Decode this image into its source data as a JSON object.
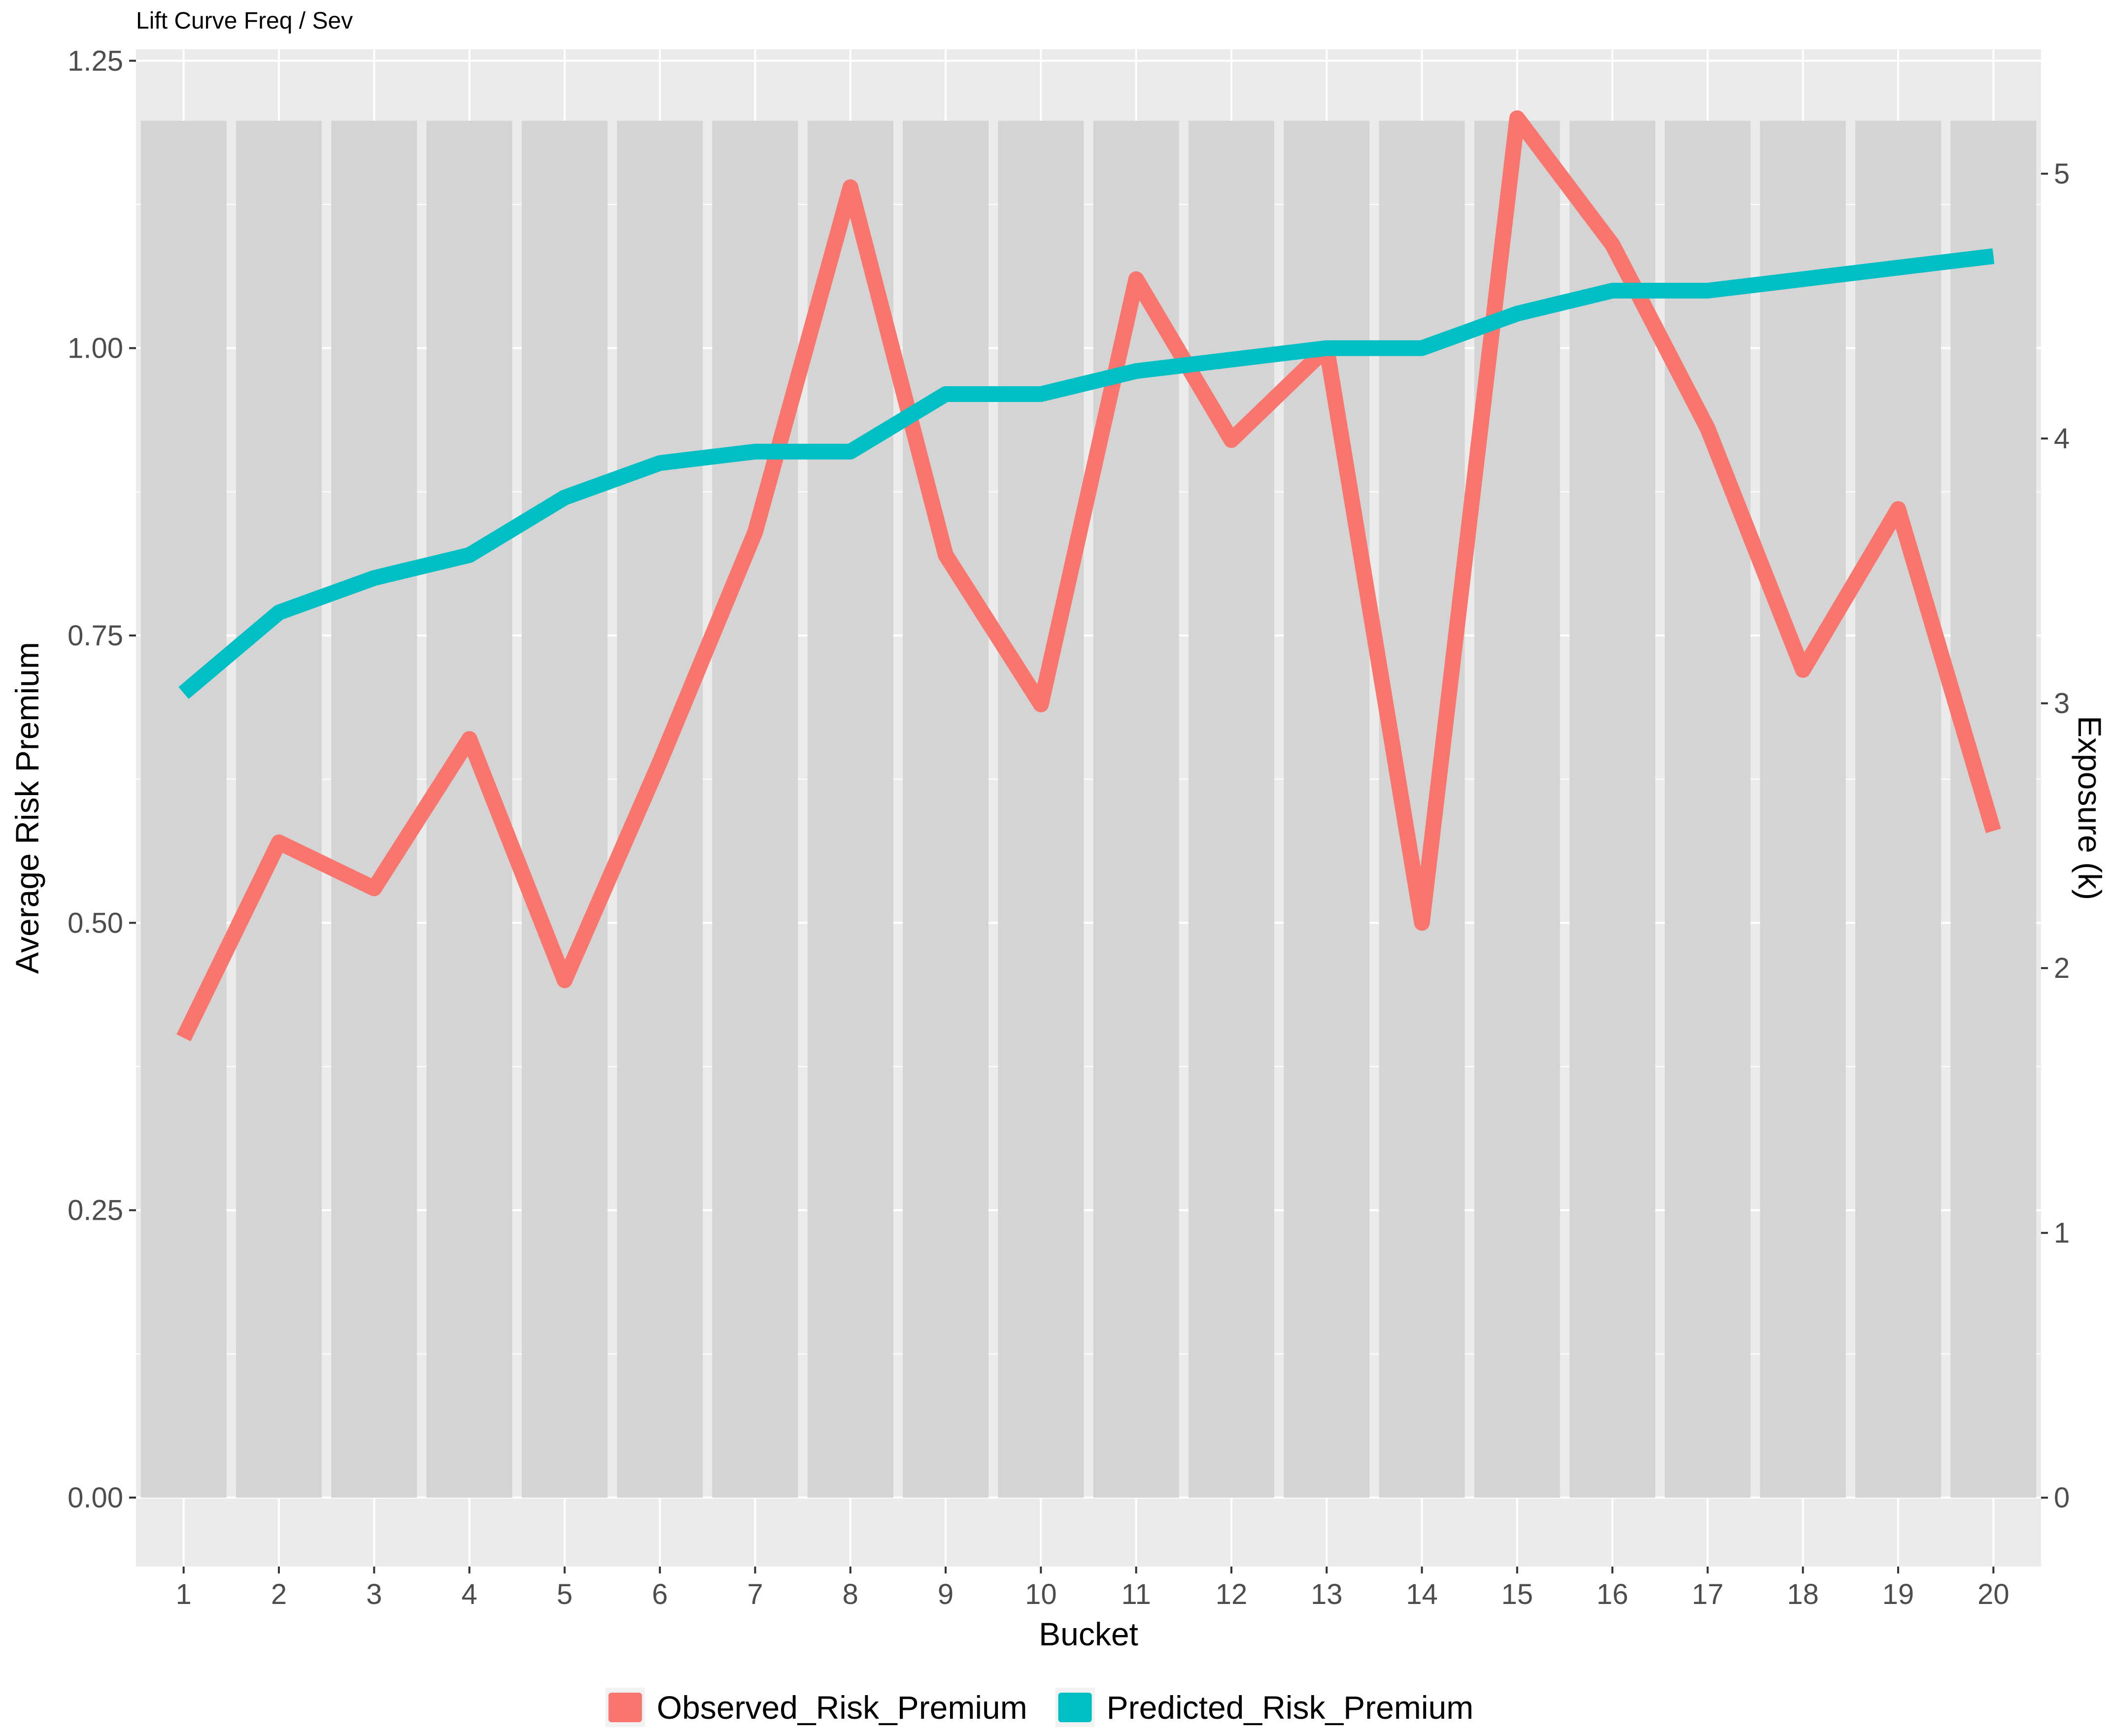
{
  "chart_data": {
    "type": "bar+line",
    "title": "Lift Curve Freq / Sev",
    "xlabel": "Bucket",
    "ylabel": "Average Risk Premium",
    "y2label": "Exposure (k)",
    "categories": [
      "1",
      "2",
      "3",
      "4",
      "5",
      "6",
      "7",
      "8",
      "9",
      "10",
      "11",
      "12",
      "13",
      "14",
      "15",
      "16",
      "17",
      "18",
      "19",
      "20"
    ],
    "ylim": [
      -0.06,
      1.26
    ],
    "y2lim": [
      -0.26,
      5.47
    ],
    "yticks": [
      0.0,
      0.25,
      0.5,
      0.75,
      1.0,
      1.25
    ],
    "ytick_labels": [
      "0.00",
      "0.25",
      "0.50",
      "0.75",
      "1.00",
      "1.25"
    ],
    "y2ticks": [
      0,
      1,
      2,
      3,
      4,
      5
    ],
    "y2tick_labels": [
      "0",
      "1",
      "2",
      "3",
      "4",
      "5"
    ],
    "bars": {
      "axis": "secondary",
      "color": "#d4d4d4",
      "values": [
        5.2,
        5.2,
        5.2,
        5.2,
        5.2,
        5.2,
        5.2,
        5.2,
        5.2,
        5.2,
        5.2,
        5.2,
        5.2,
        5.2,
        5.2,
        5.2,
        5.2,
        5.2,
        5.2,
        5.2
      ]
    },
    "series": [
      {
        "name": "Observed_Risk_Premium",
        "color": "#f8766d",
        "values": [
          0.4,
          0.57,
          0.53,
          0.66,
          0.45,
          0.64,
          0.84,
          1.14,
          0.82,
          0.69,
          1.06,
          0.92,
          1.0,
          0.5,
          1.2,
          1.09,
          0.93,
          0.72,
          0.86,
          0.58
        ]
      },
      {
        "name": "Predicted_Risk_Premium",
        "color": "#00bfc4",
        "values": [
          0.7,
          0.77,
          0.8,
          0.82,
          0.87,
          0.9,
          0.91,
          0.91,
          0.96,
          0.96,
          0.98,
          0.99,
          1.0,
          1.0,
          1.03,
          1.05,
          1.05,
          1.06,
          1.07,
          1.08
        ]
      }
    ],
    "grid": true,
    "legend": "bottom"
  }
}
